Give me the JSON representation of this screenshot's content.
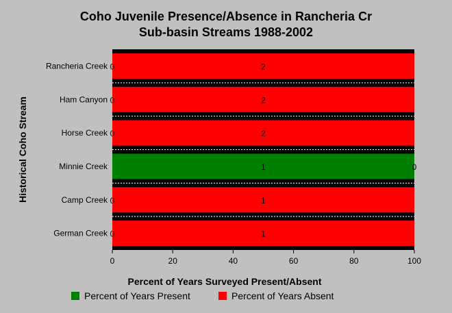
{
  "chart_data": {
    "type": "bar",
    "orientation": "horizontal",
    "stacked": true,
    "title_line1": "Coho Juvenile Presence/Absence in Rancheria Cr",
    "title_line2": "Sub-basin Streams 1988-2002",
    "xlabel": "Percent of Years Surveyed Present/Absent",
    "ylabel": "Historical Coho Stream",
    "xlim": [
      0,
      100
    ],
    "xticks": [
      "0",
      "20",
      "40",
      "60",
      "80",
      "100"
    ],
    "categories": [
      "Rancheria Creek",
      "Ham Canyon",
      "Horse Creek",
      "Minnie Creek",
      "Camp Creek",
      "German Creek"
    ],
    "series": [
      {
        "name": "Percent of Years Present",
        "color": "#008000",
        "values": [
          0,
          0,
          0,
          100,
          0,
          0
        ],
        "counts": [
          "0",
          "0",
          "0",
          "1",
          "0",
          "0"
        ]
      },
      {
        "name": "Percent of Years Absent",
        "color": "#ff0000",
        "values": [
          100,
          100,
          100,
          0,
          100,
          100
        ],
        "counts": [
          "2",
          "2",
          "2",
          "0",
          "1",
          "1"
        ]
      }
    ],
    "grid": "horizontal dashed",
    "legend_position": "bottom"
  }
}
